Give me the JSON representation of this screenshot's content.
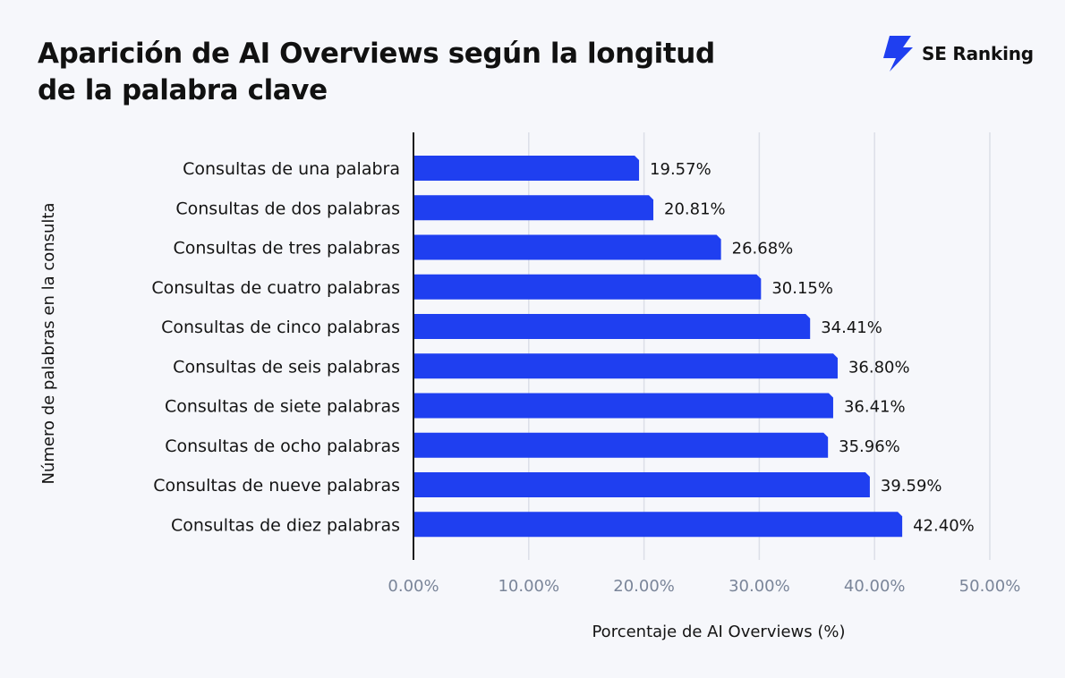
{
  "header": {
    "title_line1": "Aparición de AI Overviews según la longitud",
    "title_line2": "de la palabra clave",
    "brand": "SE Ranking",
    "brand_icon": "se-ranking-bolt-icon",
    "accent_color": "#1f3ff0"
  },
  "chart_data": {
    "type": "bar",
    "orientation": "horizontal",
    "categories": [
      "Consultas de una palabra",
      "Consultas de dos palabras",
      "Consultas de tres palabras",
      "Consultas de cuatro palabras",
      "Consultas de cinco palabras",
      "Consultas de seis palabras",
      "Consultas de siete palabras",
      "Consultas de ocho palabras",
      "Consultas de nueve palabras",
      "Consultas de diez palabras"
    ],
    "values": [
      19.57,
      20.81,
      26.68,
      30.15,
      34.41,
      36.8,
      36.41,
      35.96,
      39.59,
      42.4
    ],
    "value_labels": [
      "19.57%",
      "20.81%",
      "26.68%",
      "30.15%",
      "34.41%",
      "36.80%",
      "36.41%",
      "35.96%",
      "39.59%",
      "42.40%"
    ],
    "xlabel": "Porcentaje de AI Overviews (%)",
    "ylabel": "Número de palabras en la consulta",
    "xlim": [
      0,
      50
    ],
    "xticks": [
      0,
      10,
      20,
      30,
      40,
      50
    ],
    "xtick_labels": [
      "0.00%",
      "10.00%",
      "20.00%",
      "30.00%",
      "40.00%",
      "50.00%"
    ],
    "grid": true,
    "bar_color": "#1f3ff0",
    "grid_color": "#dcdfe8",
    "tick_color": "#7a8599"
  }
}
